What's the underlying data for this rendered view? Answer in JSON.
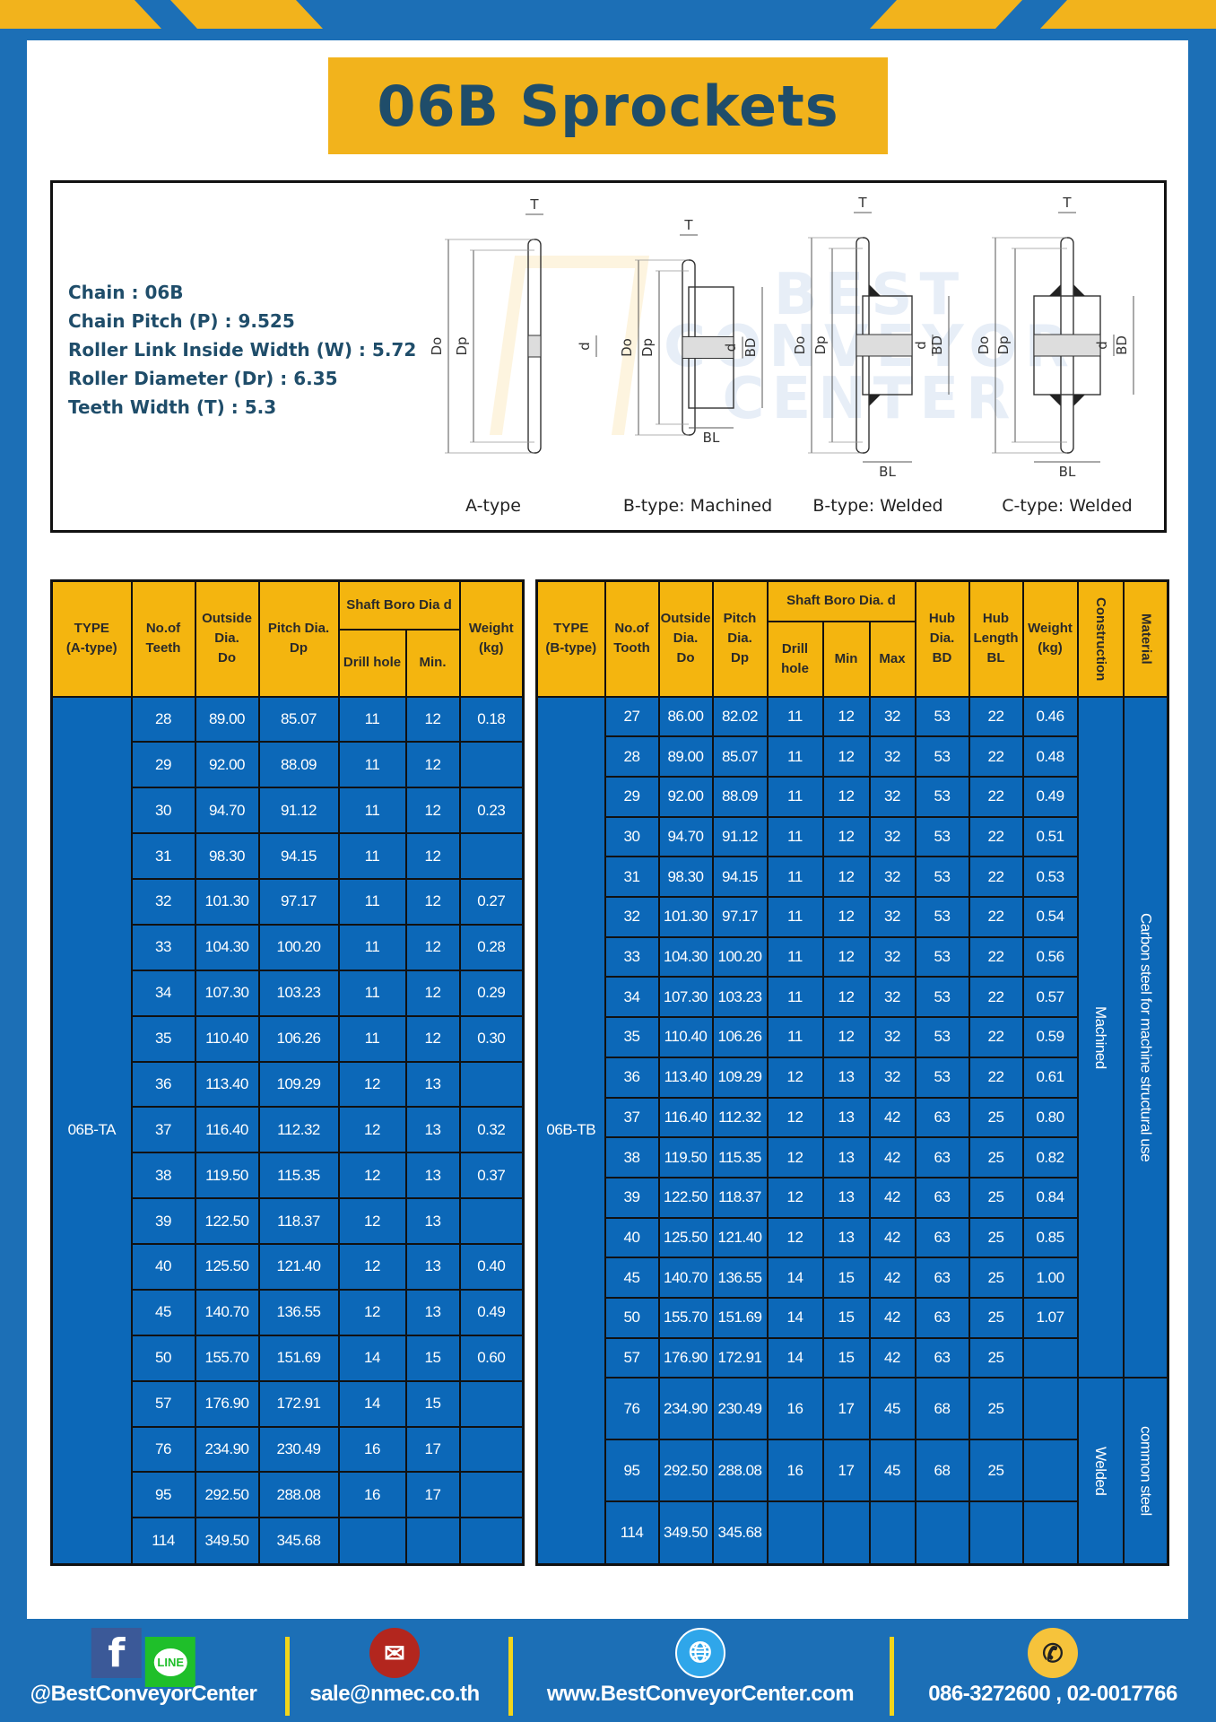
{
  "title": "06B Sprockets",
  "specs": [
    {
      "label": "Chain",
      "value": "06B"
    },
    {
      "label": "Chain Pitch (P)",
      "value": "9.525"
    },
    {
      "label": "Roller Link Inside Width (W)",
      "value": "5.72"
    },
    {
      "label": "Roller Diameter (Dr)",
      "value": "6.35"
    },
    {
      "label": "Teeth Width (T)",
      "value": "5.3"
    }
  ],
  "watermark": [
    "BEST",
    "CONVEYOR",
    "CENTER"
  ],
  "diagrams": [
    {
      "label": "A-type",
      "dims": {
        "T": "T",
        "Do": "Do",
        "Dp": "Dp",
        "d": "d"
      }
    },
    {
      "label": "B-type: Machined",
      "dims": {
        "T": "T",
        "Do": "Do",
        "Dp": "Dp",
        "d": "d",
        "BD": "BD",
        "BL": "BL"
      }
    },
    {
      "label": "B-type: Welded",
      "dims": {
        "T": "T",
        "Do": "Do",
        "Dp": "Dp",
        "d": "d",
        "BD": "BD",
        "BL": "BL"
      }
    },
    {
      "label": "C-type: Welded",
      "dims": {
        "T": "T",
        "Do": "Do",
        "Dp": "Dp",
        "d": "d",
        "BD": "BD",
        "BL": "BL"
      }
    }
  ],
  "table_a": {
    "headers": {
      "type": [
        "TYPE",
        "(A-type)"
      ],
      "teeth": [
        "No.of",
        "Teeth"
      ],
      "outside": [
        "Outside",
        "Dia.",
        "Do"
      ],
      "pitch": [
        "Pitch Dia.",
        "Dp"
      ],
      "bore": "Shaft Boro Dia d",
      "drill": "Drill hole",
      "min": "Min.",
      "weight": [
        "Weight",
        "(kg)"
      ]
    },
    "type_value": "06B-TA",
    "rows": [
      [
        "28",
        "89.00",
        "85.07",
        "11",
        "12",
        "0.18"
      ],
      [
        "29",
        "92.00",
        "88.09",
        "11",
        "12",
        ""
      ],
      [
        "30",
        "94.70",
        "91.12",
        "11",
        "12",
        "0.23"
      ],
      [
        "31",
        "98.30",
        "94.15",
        "11",
        "12",
        ""
      ],
      [
        "32",
        "101.30",
        "97.17",
        "11",
        "12",
        "0.27"
      ],
      [
        "33",
        "104.30",
        "100.20",
        "11",
        "12",
        "0.28"
      ],
      [
        "34",
        "107.30",
        "103.23",
        "11",
        "12",
        "0.29"
      ],
      [
        "35",
        "110.40",
        "106.26",
        "11",
        "12",
        "0.30"
      ],
      [
        "36",
        "113.40",
        "109.29",
        "12",
        "13",
        ""
      ],
      [
        "37",
        "116.40",
        "112.32",
        "12",
        "13",
        "0.32"
      ],
      [
        "38",
        "119.50",
        "115.35",
        "12",
        "13",
        "0.37"
      ],
      [
        "39",
        "122.50",
        "118.37",
        "12",
        "13",
        ""
      ],
      [
        "40",
        "125.50",
        "121.40",
        "12",
        "13",
        "0.40"
      ],
      [
        "45",
        "140.70",
        "136.55",
        "12",
        "13",
        "0.49"
      ],
      [
        "50",
        "155.70",
        "151.69",
        "14",
        "15",
        "0.60"
      ],
      [
        "57",
        "176.90",
        "172.91",
        "14",
        "15",
        ""
      ],
      [
        "76",
        "234.90",
        "230.49",
        "16",
        "17",
        ""
      ],
      [
        "95",
        "292.50",
        "288.08",
        "16",
        "17",
        ""
      ],
      [
        "114",
        "349.50",
        "345.68",
        "",
        "",
        ""
      ]
    ]
  },
  "table_b": {
    "headers": {
      "type": [
        "TYPE",
        "(B-type)"
      ],
      "teeth": [
        "No.of",
        "Tooth"
      ],
      "outside": [
        "Outside",
        "Dia.",
        "Do"
      ],
      "pitch": [
        "Pitch",
        "Dia.",
        "Dp"
      ],
      "bore": "Shaft Boro Dia. d",
      "drill": "Drill hole",
      "min": "Min",
      "max": "Max",
      "hub_dia": [
        "Hub",
        "Dia.",
        "BD"
      ],
      "hub_len": [
        "Hub",
        "Length",
        "BL"
      ],
      "weight": [
        "Weight",
        "(kg)"
      ],
      "construction": "Construction",
      "material": "Material"
    },
    "type_value": "06B-TB",
    "construction_groups": [
      {
        "label": "Machined",
        "rows": 17
      },
      {
        "label": "Welded",
        "rows": 3
      }
    ],
    "material_groups": [
      {
        "label": "Carbon steel for machine structural use",
        "rows": 17
      },
      {
        "label": "common steel",
        "rows": 3
      }
    ],
    "rows": [
      [
        "27",
        "86.00",
        "82.02",
        "11",
        "12",
        "32",
        "53",
        "22",
        "0.46"
      ],
      [
        "28",
        "89.00",
        "85.07",
        "11",
        "12",
        "32",
        "53",
        "22",
        "0.48"
      ],
      [
        "29",
        "92.00",
        "88.09",
        "11",
        "12",
        "32",
        "53",
        "22",
        "0.49"
      ],
      [
        "30",
        "94.70",
        "91.12",
        "11",
        "12",
        "32",
        "53",
        "22",
        "0.51"
      ],
      [
        "31",
        "98.30",
        "94.15",
        "11",
        "12",
        "32",
        "53",
        "22",
        "0.53"
      ],
      [
        "32",
        "101.30",
        "97.17",
        "11",
        "12",
        "32",
        "53",
        "22",
        "0.54"
      ],
      [
        "33",
        "104.30",
        "100.20",
        "11",
        "12",
        "32",
        "53",
        "22",
        "0.56"
      ],
      [
        "34",
        "107.30",
        "103.23",
        "11",
        "12",
        "32",
        "53",
        "22",
        "0.57"
      ],
      [
        "35",
        "110.40",
        "106.26",
        "11",
        "12",
        "32",
        "53",
        "22",
        "0.59"
      ],
      [
        "36",
        "113.40",
        "109.29",
        "12",
        "13",
        "32",
        "53",
        "22",
        "0.61"
      ],
      [
        "37",
        "116.40",
        "112.32",
        "12",
        "13",
        "42",
        "63",
        "25",
        "0.80"
      ],
      [
        "38",
        "119.50",
        "115.35",
        "12",
        "13",
        "42",
        "63",
        "25",
        "0.82"
      ],
      [
        "39",
        "122.50",
        "118.37",
        "12",
        "13",
        "42",
        "63",
        "25",
        "0.84"
      ],
      [
        "40",
        "125.50",
        "121.40",
        "12",
        "13",
        "42",
        "63",
        "25",
        "0.85"
      ],
      [
        "45",
        "140.70",
        "136.55",
        "14",
        "15",
        "42",
        "63",
        "25",
        "1.00"
      ],
      [
        "50",
        "155.70",
        "151.69",
        "14",
        "15",
        "42",
        "63",
        "25",
        "1.07"
      ],
      [
        "57",
        "176.90",
        "172.91",
        "14",
        "15",
        "42",
        "63",
        "25",
        ""
      ],
      [
        "76",
        "234.90",
        "230.49",
        "16",
        "17",
        "45",
        "68",
        "25",
        ""
      ],
      [
        "95",
        "292.50",
        "288.08",
        "16",
        "17",
        "45",
        "68",
        "25",
        ""
      ],
      [
        "114",
        "349.50",
        "345.68",
        "",
        "",
        "",
        "",
        "",
        ""
      ]
    ]
  },
  "footer": {
    "social": "@BestConveyorCenter",
    "line_icon_text": "LINE",
    "email": "sale@nmec.co.th",
    "website": "www.BestConveyorCenter.com",
    "phone": "086-3272600 , 02-0017766"
  },
  "colors": {
    "brand_blue": "#1c6fb6",
    "cell_blue": "#0c68b8",
    "yellow": "#f2b31c",
    "title_text": "#1f4d6a"
  }
}
